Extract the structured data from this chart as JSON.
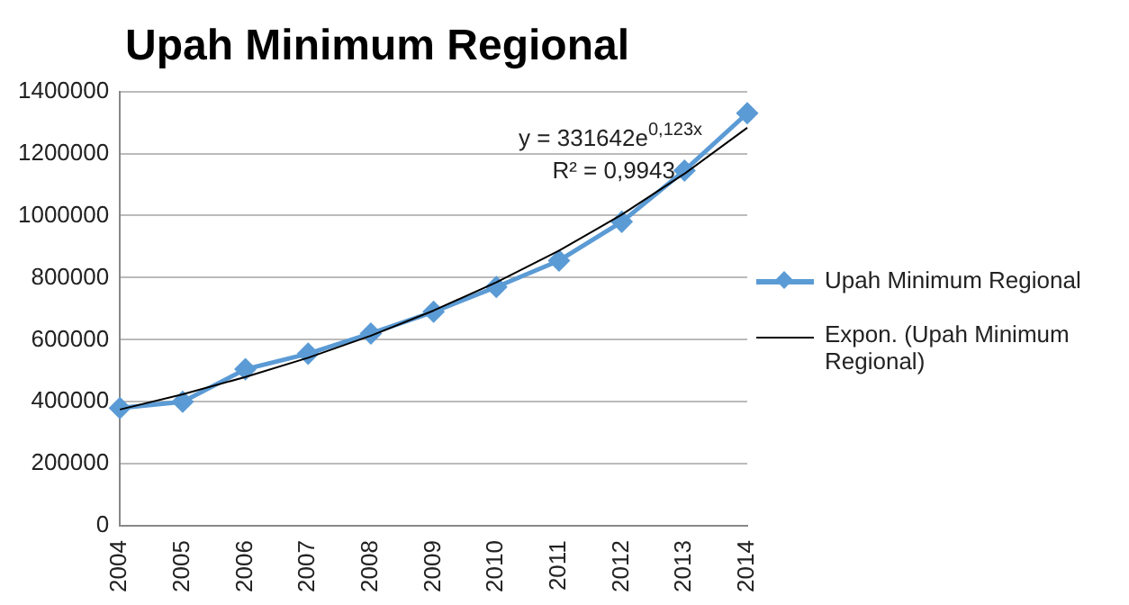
{
  "chart_data": {
    "type": "line",
    "title": "Upah Minimum Regional",
    "categories": [
      "2004",
      "2005",
      "2006",
      "2007",
      "2008",
      "2009",
      "2010",
      "2011",
      "2012",
      "2013",
      "2014"
    ],
    "series": [
      {
        "name": "Upah Minimum Regional",
        "color": "#5b9bd5",
        "marker": "diamond",
        "values": [
          380000,
          400000,
          505000,
          555000,
          620000,
          690000,
          770000,
          855000,
          980000,
          1145000,
          1330000
        ]
      },
      {
        "name": "Expon. (Upah Minimum Regional)",
        "color": "#000000",
        "marker": "none",
        "values": [
          375000,
          424000,
          480000,
          542000,
          613000,
          694000,
          785000,
          887000,
          1003000,
          1135000,
          1283000
        ]
      }
    ],
    "ylim": [
      0,
      1400000
    ],
    "yticks": [
      0,
      200000,
      400000,
      600000,
      800000,
      1000000,
      1200000,
      1400000
    ],
    "grid": "y",
    "legend": "right",
    "annotations": [
      "y = 331642e$^{0,123x}$",
      "R² = 0,9943"
    ]
  }
}
